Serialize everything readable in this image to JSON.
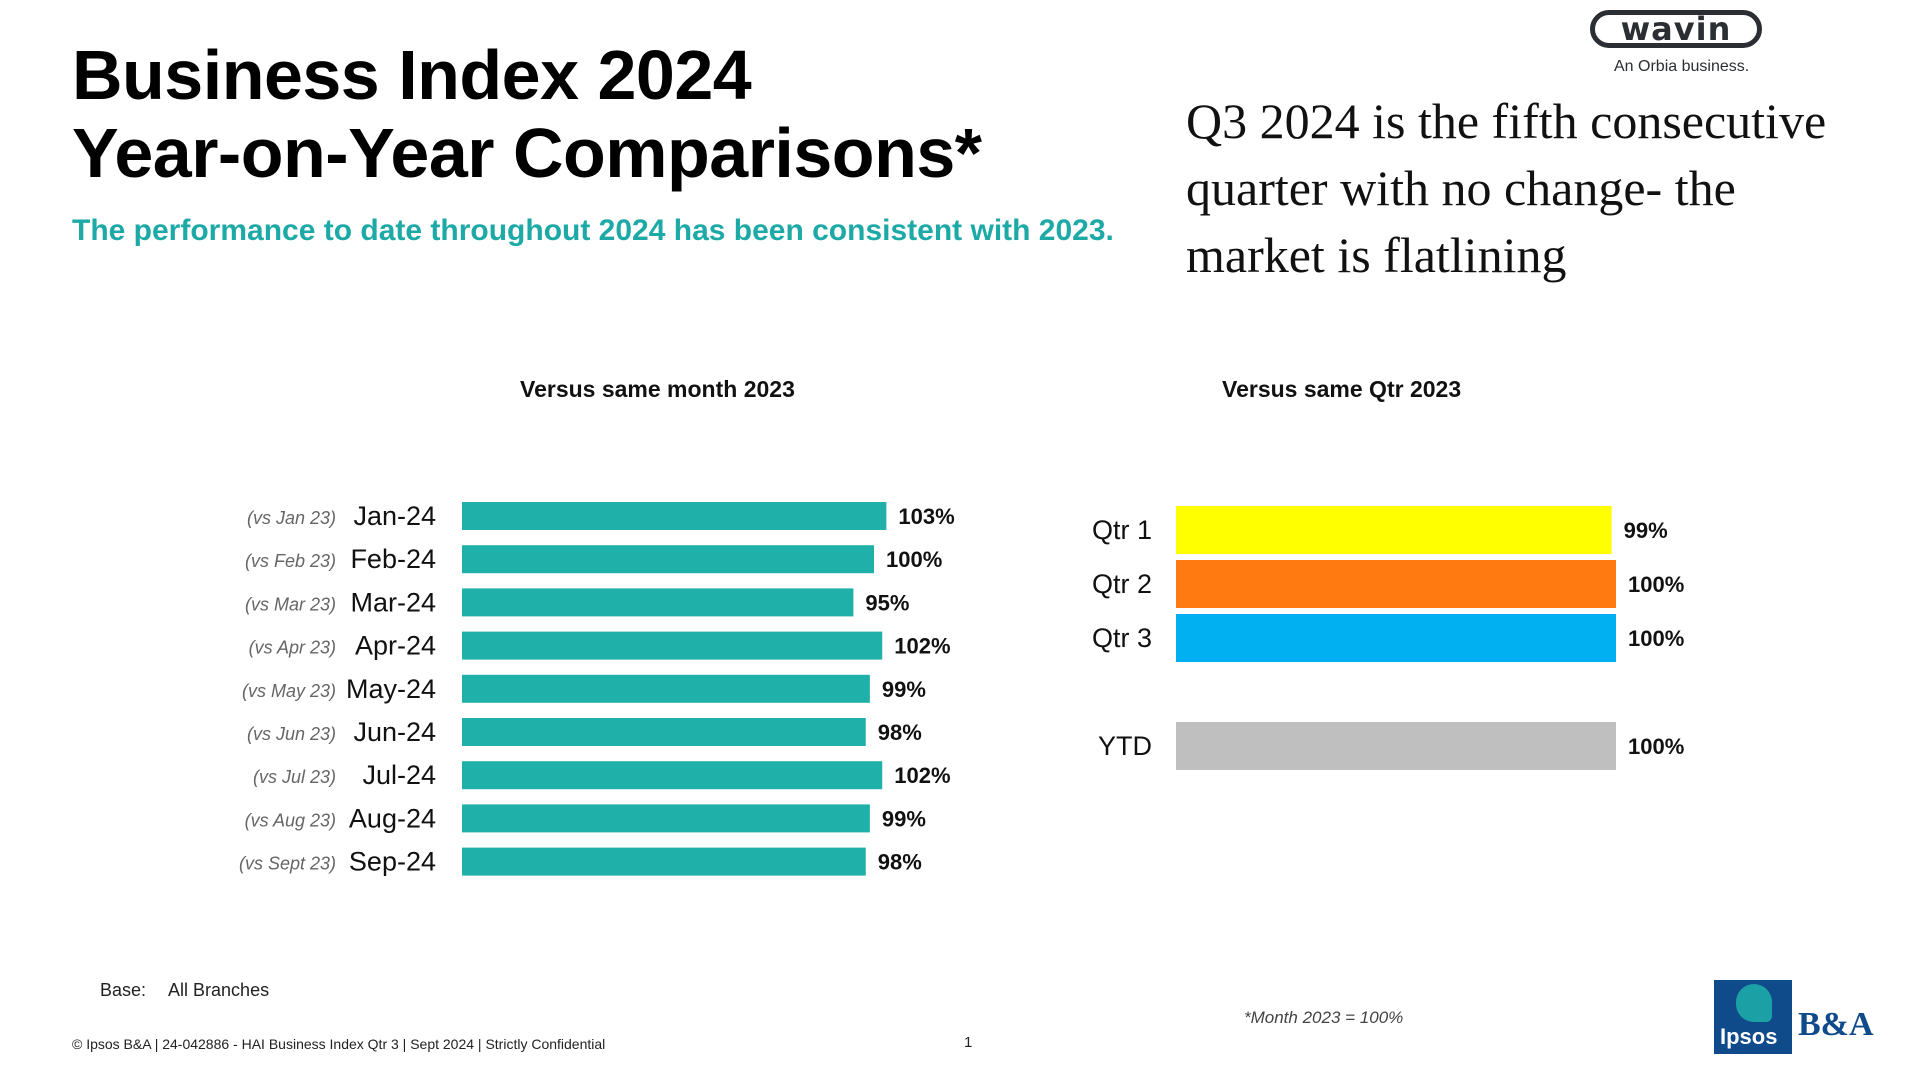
{
  "title": {
    "line1": "Business Index 2024",
    "line2": "Year-on-Year Comparisons*"
  },
  "subtitle": "The performance to date throughout 2024 has been consistent with 2023.",
  "callout": "Q3 2024 is the fifth consecutive quarter with no change- the market is flatlining",
  "brand": {
    "wavin_wordmark": "wavin",
    "wavin_tagline": "An Orbia business.",
    "ipsos": "Ipsos",
    "ba": "B&A"
  },
  "chart_data": [
    {
      "type": "bar",
      "orientation": "horizontal",
      "title": "Versus same month 2023",
      "categories": [
        "Jan-24",
        "Feb-24",
        "Mar-24",
        "Apr-24",
        "May-24",
        "Jun-24",
        "Jul-24",
        "Aug-24",
        "Sep-24"
      ],
      "comparison_labels": [
        "(vs Jan 23)",
        "(vs Feb 23)",
        "(vs Mar 23)",
        "(vs Apr 23)",
        "(vs May 23)",
        "(vs Jun 23)",
        "(vs Jul 23)",
        "(vs Aug 23)",
        "(vs Sept 23)"
      ],
      "values": [
        103,
        100,
        95,
        102,
        99,
        98,
        102,
        99,
        98
      ],
      "data_labels": [
        "103%",
        "100%",
        "95%",
        "102%",
        "99%",
        "98%",
        "102%",
        "99%",
        "98%"
      ],
      "colors": [
        "#20b0aa"
      ],
      "grid": false
    },
    {
      "type": "bar",
      "orientation": "horizontal",
      "title": "Versus same Qtr 2023",
      "categories": [
        "Qtr 1",
        "Qtr 2",
        "Qtr 3",
        "YTD"
      ],
      "values": [
        99,
        100,
        100,
        100
      ],
      "data_labels": [
        "99%",
        "100%",
        "100%",
        "100%"
      ],
      "colors": [
        "#ffff00",
        "#ff7a10",
        "#00b0f0",
        "#bfbfbf"
      ],
      "grid": false
    }
  ],
  "base": {
    "label": "Base:",
    "value": "All Branches"
  },
  "footnote": "*Month 2023 = 100%",
  "footer": "© Ipsos B&A | 24-042886 - HAI Business Index Qtr 3 | Sept 2024 | Strictly Confidential",
  "page_number": "1"
}
